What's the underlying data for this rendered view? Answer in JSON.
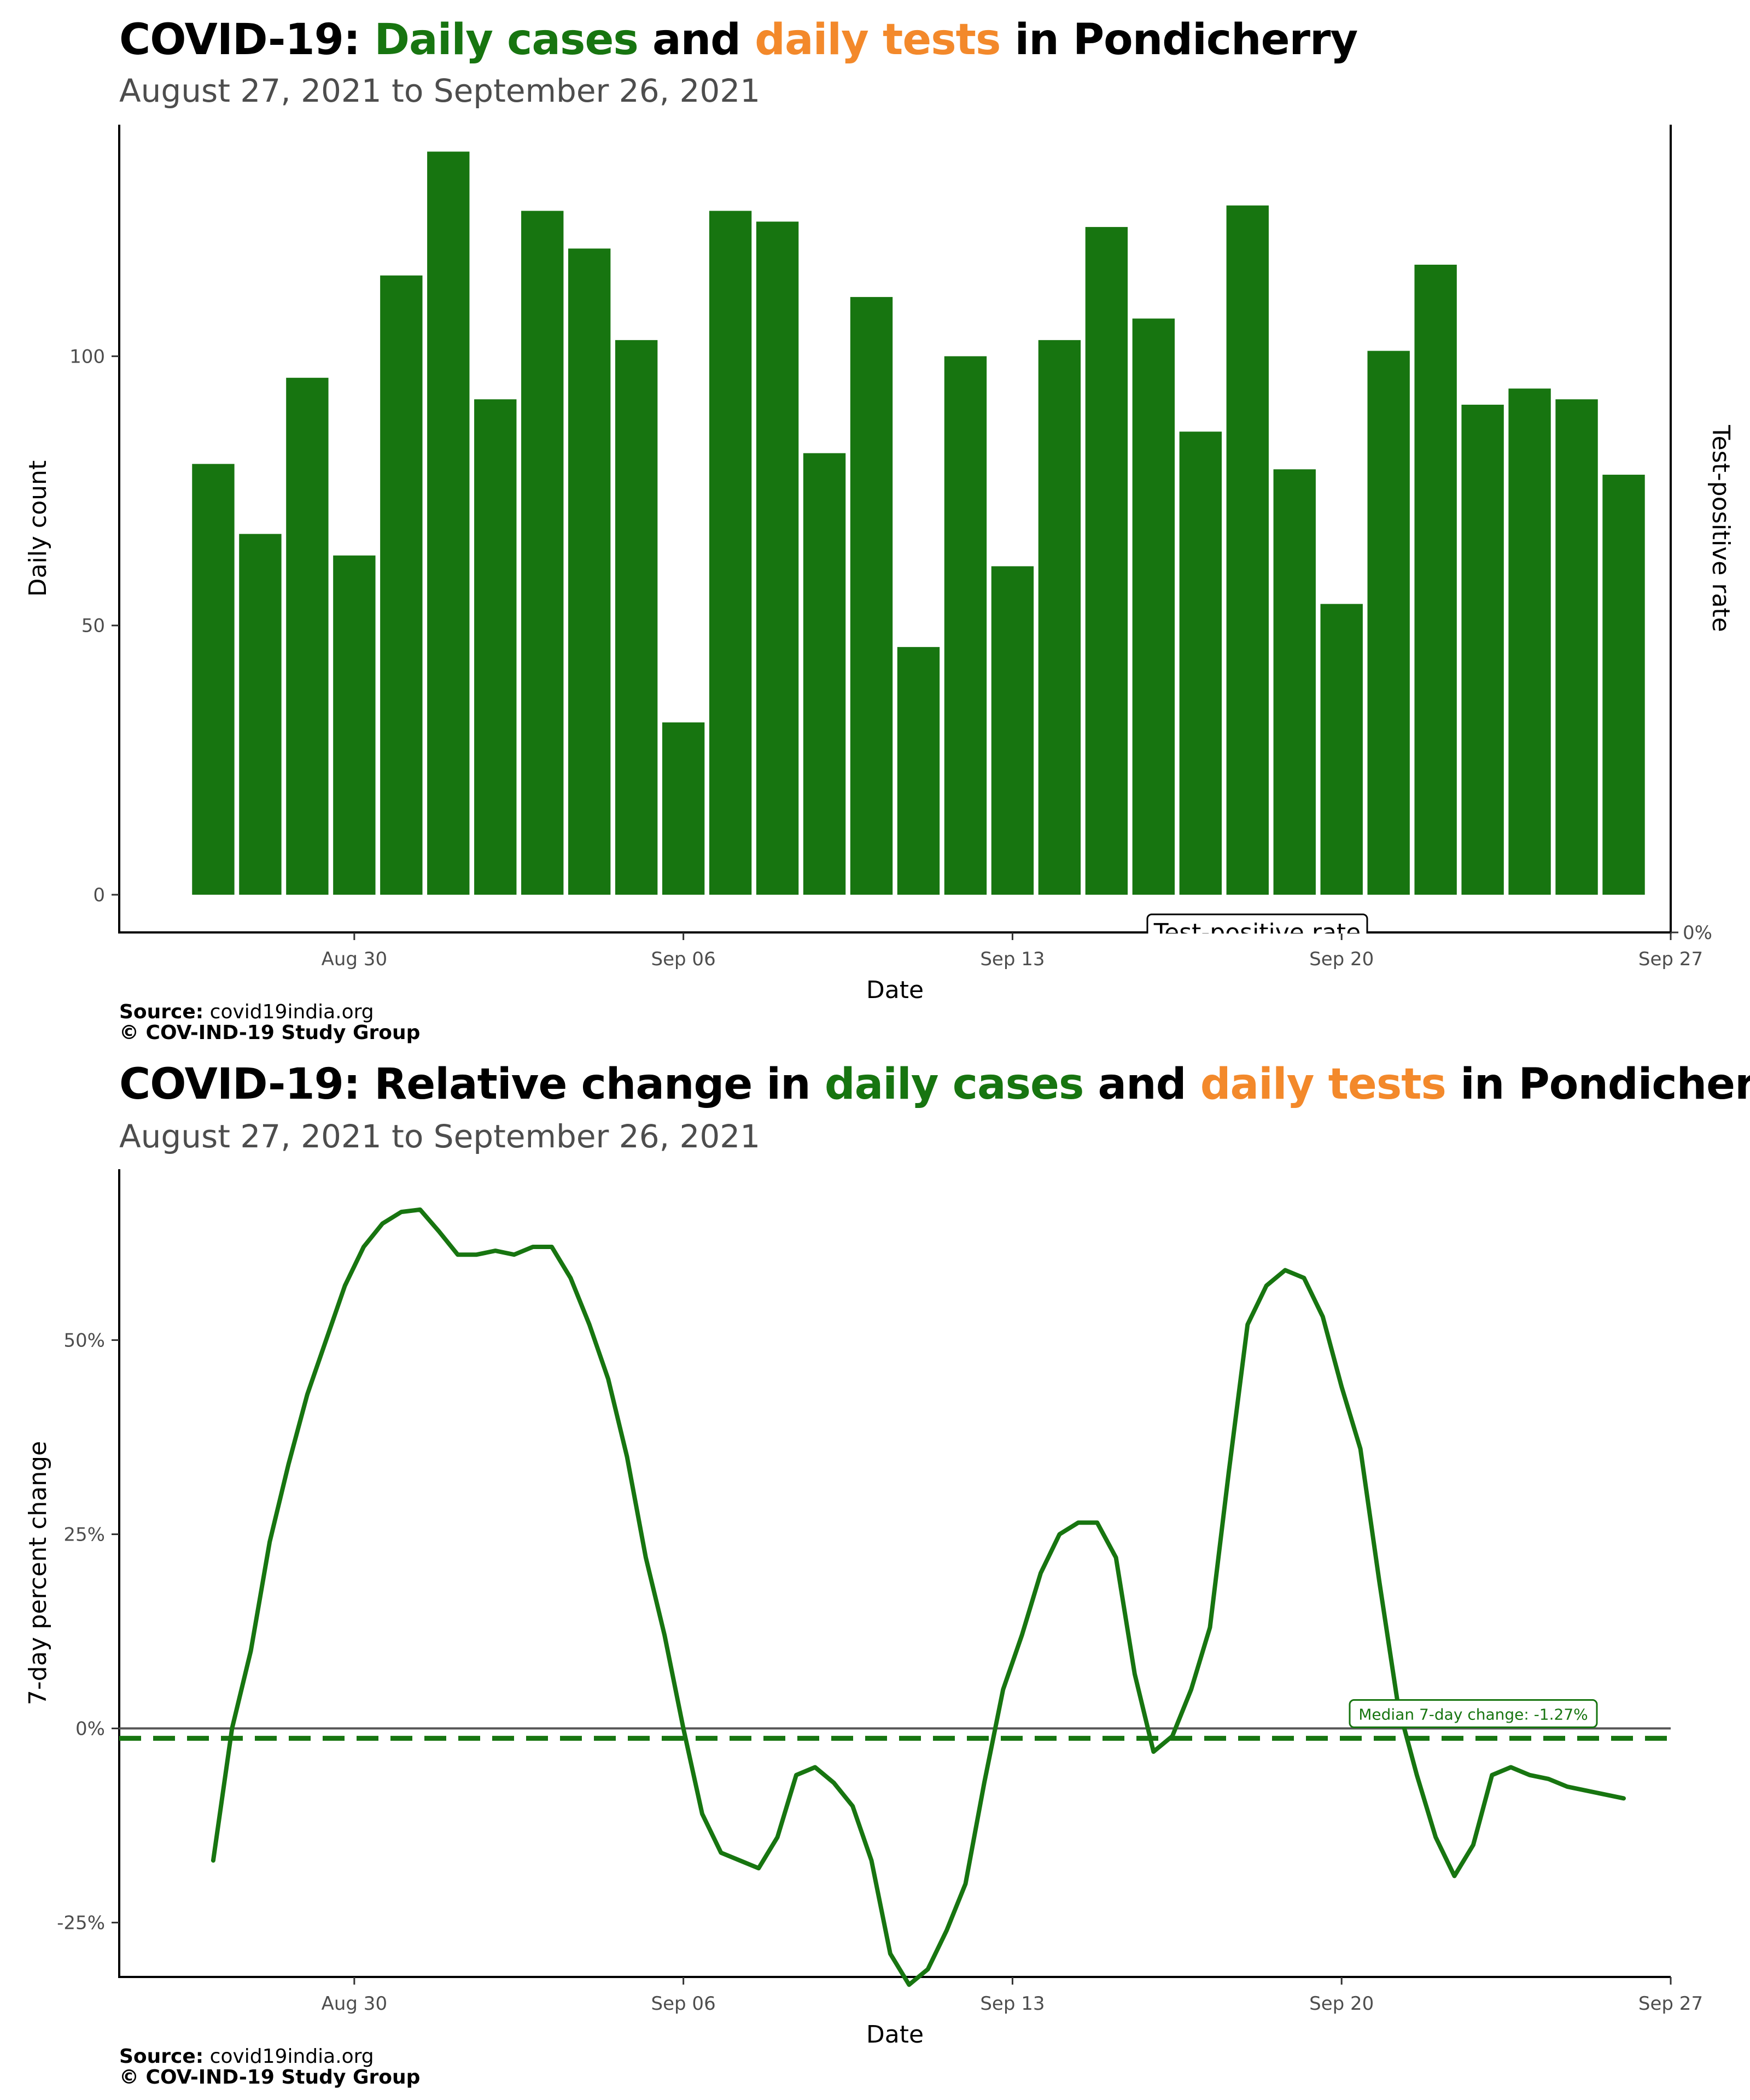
{
  "chart1": {
    "title_prefix": "COVID-19:",
    "title_cases": "Daily cases",
    "title_and": "and",
    "title_tests": "daily tests",
    "title_suffix": "in Pondicherry",
    "subtitle": "August 27, 2021 to September 26, 2021",
    "source_label": "Source:",
    "source_value": "covid19india.org",
    "copyright": "© COV-IND-19 Study Group",
    "legend_label": "Test-positive rate",
    "colors": {
      "cases": "#177510",
      "tests": "#f3892b"
    }
  },
  "chart2": {
    "title_prefix": "COVID-19:",
    "title_mid": "Relative change in",
    "title_cases": "daily cases",
    "title_and": "and",
    "title_tests": "daily tests",
    "title_suffix": "in Pondicherry",
    "subtitle": "August 27, 2021 to September 26, 2021",
    "source_label": "Source:",
    "source_value": "covid19india.org",
    "copyright": "© COV-IND-19 Study Group",
    "median_label": "Median 7-day change: -1.27%"
  },
  "chart_data": [
    {
      "type": "bar",
      "xlabel": "Date",
      "ylabel": "Daily count",
      "y2label": "Test-positive rate",
      "ylim": [
        -7,
        143
      ],
      "yticks": [
        0,
        50,
        100
      ],
      "y2ticks": [
        "0%"
      ],
      "xlim": [
        "2021-08-25",
        "2021-09-27"
      ],
      "xticks": [
        {
          "date": "2021-08-30",
          "label": "Aug 30"
        },
        {
          "date": "2021-09-06",
          "label": "Sep 06"
        },
        {
          "date": "2021-09-13",
          "label": "Sep 13"
        },
        {
          "date": "2021-09-20",
          "label": "Sep 20"
        },
        {
          "date": "2021-09-27",
          "label": "Sep 27"
        }
      ],
      "dates": [
        "2021-08-27",
        "2021-08-28",
        "2021-08-29",
        "2021-08-30",
        "2021-08-31",
        "2021-09-01",
        "2021-09-02",
        "2021-09-03",
        "2021-09-04",
        "2021-09-05",
        "2021-09-06",
        "2021-09-07",
        "2021-09-08",
        "2021-09-09",
        "2021-09-10",
        "2021-09-11",
        "2021-09-12",
        "2021-09-13",
        "2021-09-14",
        "2021-09-15",
        "2021-09-16",
        "2021-09-17",
        "2021-09-18",
        "2021-09-19",
        "2021-09-20",
        "2021-09-21",
        "2021-09-22",
        "2021-09-23",
        "2021-09-24",
        "2021-09-25",
        "2021-09-26"
      ],
      "values": [
        80,
        67,
        96,
        63,
        115,
        138,
        92,
        127,
        120,
        103,
        32,
        127,
        125,
        82,
        111,
        46,
        100,
        61,
        103,
        124,
        107,
        86,
        128,
        79,
        54,
        101,
        117,
        91,
        94,
        92,
        78
      ]
    },
    {
      "type": "line",
      "xlabel": "Date",
      "ylabel": "7-day percent change",
      "ylim": [
        -32,
        72
      ],
      "yticks": [
        {
          "v": -25,
          "label": "-25%"
        },
        {
          "v": 0,
          "label": "0%"
        },
        {
          "v": 25,
          "label": "25%"
        },
        {
          "v": 50,
          "label": "50%"
        }
      ],
      "xlim": [
        "2021-08-25",
        "2021-09-27"
      ],
      "xticks": [
        {
          "date": "2021-08-30",
          "label": "Aug 30"
        },
        {
          "date": "2021-09-06",
          "label": "Sep 06"
        },
        {
          "date": "2021-09-13",
          "label": "Sep 13"
        },
        {
          "date": "2021-09-20",
          "label": "Sep 20"
        },
        {
          "date": "2021-09-27",
          "label": "Sep 27"
        }
      ],
      "median": -1.27,
      "x": [
        "2021-08-27 00:00",
        "2021-08-27 09:36",
        "2021-08-27 19:12",
        "2021-08-28 04:48",
        "2021-08-28 14:24",
        "2021-08-29 00:00",
        "2021-08-29 09:36",
        "2021-08-29 19:12",
        "2021-08-30 04:48",
        "2021-08-30 14:24",
        "2021-08-31 00:00",
        "2021-08-31 09:36",
        "2021-08-31 19:12",
        "2021-09-01 04:48",
        "2021-09-01 14:24",
        "2021-09-02 00:00",
        "2021-09-02 09:36",
        "2021-09-02 19:12",
        "2021-09-03 04:48",
        "2021-09-03 14:24",
        "2021-09-04 00:00",
        "2021-09-04 09:36",
        "2021-09-04 19:12",
        "2021-09-05 04:48",
        "2021-09-05 14:24",
        "2021-09-06 00:00",
        "2021-09-06 09:36",
        "2021-09-06 19:12",
        "2021-09-07 04:48",
        "2021-09-07 14:24",
        "2021-09-08 00:00",
        "2021-09-08 09:36",
        "2021-09-08 19:12",
        "2021-09-09 04:48",
        "2021-09-09 14:24",
        "2021-09-10 00:00",
        "2021-09-10 09:36",
        "2021-09-10 19:12",
        "2021-09-11 04:48",
        "2021-09-11 14:24",
        "2021-09-12 00:00",
        "2021-09-12 09:36",
        "2021-09-12 19:12",
        "2021-09-13 04:48",
        "2021-09-13 14:24",
        "2021-09-14 00:00",
        "2021-09-14 09:36",
        "2021-09-14 19:12",
        "2021-09-15 04:48",
        "2021-09-15 14:24",
        "2021-09-16 00:00",
        "2021-09-16 09:36",
        "2021-09-16 19:12",
        "2021-09-17 04:48",
        "2021-09-17 14:24",
        "2021-09-18 00:00",
        "2021-09-18 09:36",
        "2021-09-18 19:12",
        "2021-09-19 04:48",
        "2021-09-19 14:24",
        "2021-09-20 00:00",
        "2021-09-20 09:36",
        "2021-09-20 19:12",
        "2021-09-21 04:48",
        "2021-09-21 14:24",
        "2021-09-22 00:00",
        "2021-09-22 09:36",
        "2021-09-22 19:12",
        "2021-09-23 04:48",
        "2021-09-23 14:24",
        "2021-09-24 00:00",
        "2021-09-24 09:36",
        "2021-09-24 19:12",
        "2021-09-25 04:48",
        "2021-09-25 14:24",
        "2021-09-26 00:00"
      ],
      "y": [
        -17,
        0,
        10,
        24,
        34,
        43,
        50,
        57,
        62,
        65,
        66.5,
        66.8,
        64,
        61,
        61,
        61.5,
        61,
        62,
        62,
        58,
        52,
        45,
        35,
        22,
        12,
        0,
        -11,
        -16,
        -17,
        -18,
        -14,
        -6,
        -5,
        -7,
        -10,
        -17,
        -29,
        -33,
        -31,
        -26,
        -20,
        -7,
        5,
        12,
        20,
        25,
        26.5,
        26.5,
        22,
        7,
        -3,
        -1,
        5,
        13,
        33,
        52,
        57,
        59,
        58,
        53,
        44,
        36,
        19,
        3,
        -6,
        -14,
        -19,
        -15,
        -6,
        -5,
        -6,
        -6.5,
        -7.5,
        -8,
        -8.5,
        -9
      ]
    }
  ]
}
